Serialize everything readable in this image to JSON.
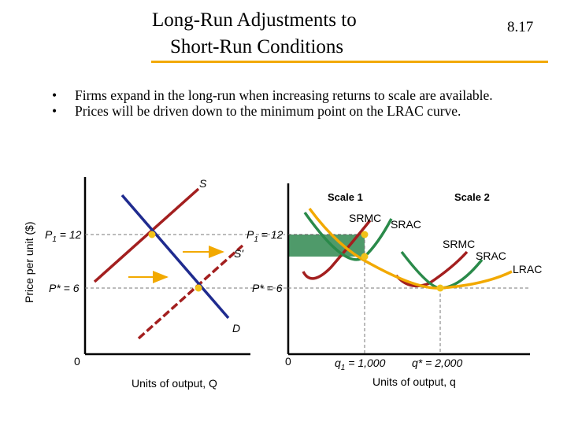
{
  "slide": {
    "title_line1": "Long-Run Adjustments to",
    "title_line2": "Short-Run Conditions",
    "number": "8.17",
    "accent_color": "#f2a900"
  },
  "bullets": [
    "Firms expand in the long-run when increasing returns to scale are available.",
    "Prices will be driven down to the minimum point on the LRAC curve."
  ],
  "left_graph": {
    "y_axis_label": "Price per unit ($)",
    "x_axis_label": "Units of output, Q",
    "origin": "0",
    "p1_label": "P",
    "p1_sub": "1",
    "p1_value": " = 12",
    "pstar_label": "P* = 6",
    "curve_s": "S",
    "curve_s_prime": "S'",
    "curve_d": "D",
    "colors": {
      "supply": "#a31f1f",
      "demand": "#1f2b8f",
      "point": "#f2c21a"
    }
  },
  "right_graph": {
    "x_axis_label": "Units of output, q",
    "origin": "0",
    "p1_label": "P",
    "p1_sub": "1",
    "p1_value": " = 12",
    "pstar_label": "P* = 6",
    "scale1": "Scale 1",
    "scale2": "Scale 2",
    "srmc1": "SRMC",
    "srac1": "SRAC",
    "srmc2": "SRMC",
    "srac2": "SRAC",
    "lrac": "LRAC",
    "q1_label": "q",
    "q1_sub": "1",
    "q1_value": " = 1,000",
    "qstar_label": "q* = 2,000",
    "colors": {
      "srmc": "#a31f1f",
      "srac": "#2a8a4a",
      "lrac": "#f2a900",
      "profit": "#4f9a6a"
    }
  }
}
